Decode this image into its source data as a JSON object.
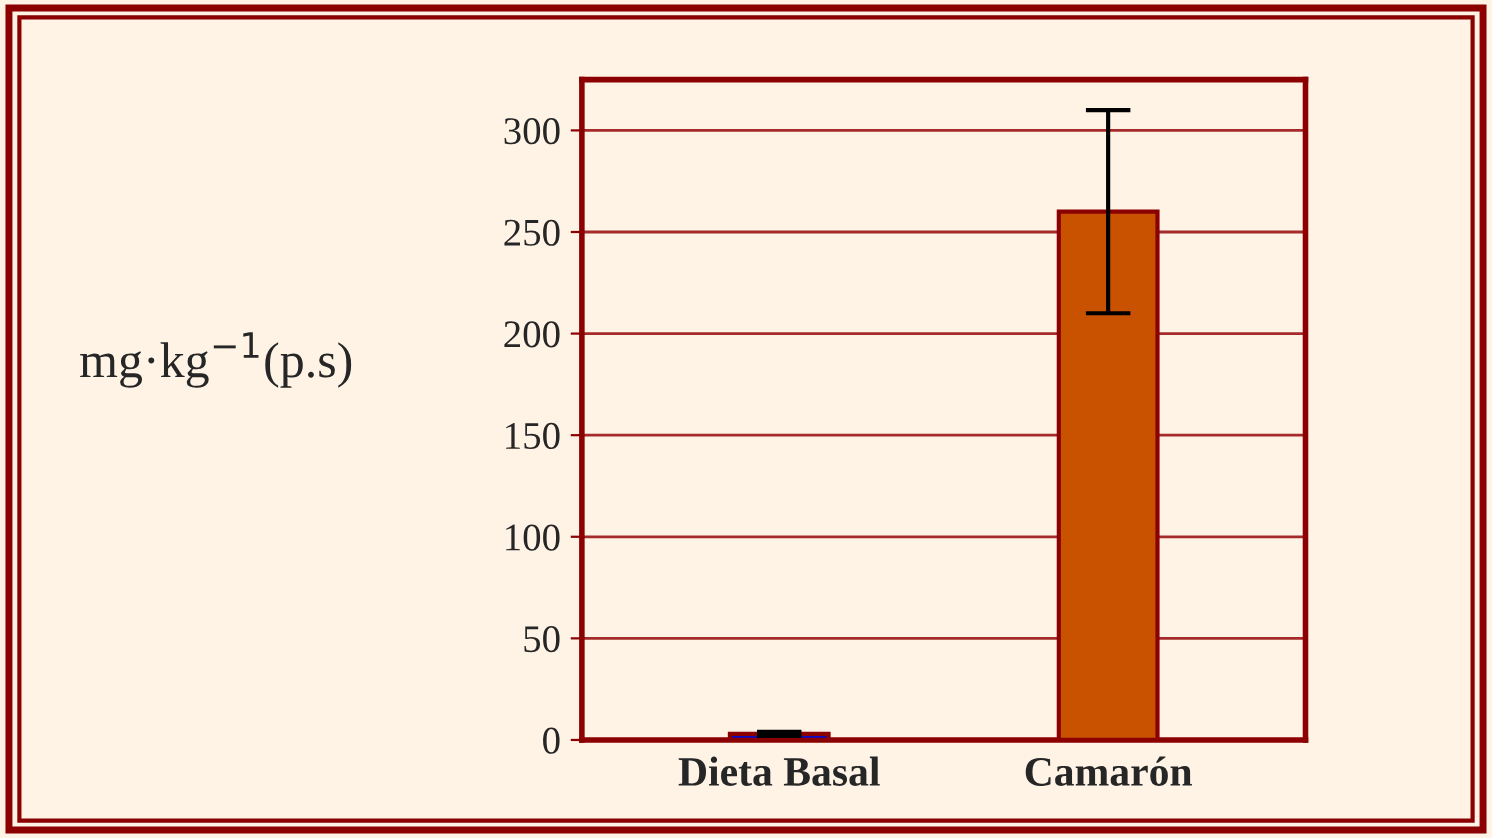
{
  "chart_data": {
    "type": "bar",
    "ylabel": "mg·kg$^{−1}$(p.s)",
    "categories": [
      "Dieta Basal",
      "Camarón"
    ],
    "values": [
      3,
      260
    ],
    "colors": [
      "#0a0acc",
      "#c85200"
    ],
    "errors": [
      1,
      50
    ],
    "ylim": [
      0,
      325
    ],
    "yticks": [
      0,
      50,
      100,
      150,
      200,
      250,
      300
    ],
    "grid": "y"
  }
}
